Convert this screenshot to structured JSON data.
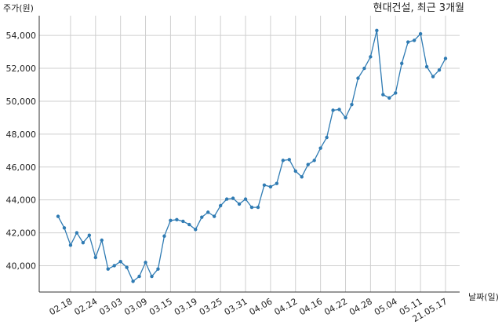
{
  "chart_data": {
    "type": "line",
    "title": "현대건설, 최근 3개월",
    "y_label": "주가(원)",
    "x_label": "날짜(일)",
    "categories": [
      null,
      null,
      "02.18",
      null,
      null,
      null,
      "02.24",
      null,
      null,
      null,
      "03.03",
      null,
      null,
      null,
      "03.09",
      null,
      null,
      null,
      "03.15",
      null,
      null,
      null,
      "03.19",
      null,
      null,
      null,
      "03.25",
      null,
      null,
      null,
      "03.31",
      null,
      null,
      null,
      "04.06",
      null,
      null,
      null,
      "04.12",
      null,
      null,
      null,
      "04.16",
      null,
      null,
      null,
      "04.22",
      null,
      null,
      null,
      "04.28",
      null,
      null,
      null,
      "05.04",
      null,
      null,
      null,
      "05.11",
      null,
      null,
      null,
      "21.05.17"
    ],
    "values": [
      43000,
      42300,
      41250,
      42000,
      41400,
      41850,
      40500,
      41550,
      39800,
      40000,
      40250,
      39900,
      39050,
      39350,
      40200,
      39350,
      39800,
      41800,
      42750,
      42800,
      42700,
      42500,
      42200,
      42950,
      43250,
      43000,
      43650,
      44050,
      44100,
      43750,
      44050,
      43550,
      43550,
      44900,
      44800,
      45000,
      46400,
      46450,
      45750,
      45400,
      46150,
      46400,
      47150,
      47800,
      49450,
      49500,
      49000,
      49800,
      51400,
      52000,
      52700,
      54300,
      50400,
      50200,
      50500,
      52300,
      53600,
      53700,
      54100,
      52100,
      51500,
      51900,
      52600
    ],
    "color": "#2f7bb3",
    "ylim": [
      38400,
      55200
    ],
    "yticks": [
      {
        "value": 40000,
        "label": "40,000"
      },
      {
        "value": 42000,
        "label": "42,000"
      },
      {
        "value": 44000,
        "label": "44,000"
      },
      {
        "value": 46000,
        "label": "46,000"
      },
      {
        "value": 48000,
        "label": "48,000"
      },
      {
        "value": 50000,
        "label": "50,000"
      },
      {
        "value": 52000,
        "label": "52,000"
      },
      {
        "value": 54000,
        "label": "54,000"
      }
    ],
    "grid": true
  }
}
